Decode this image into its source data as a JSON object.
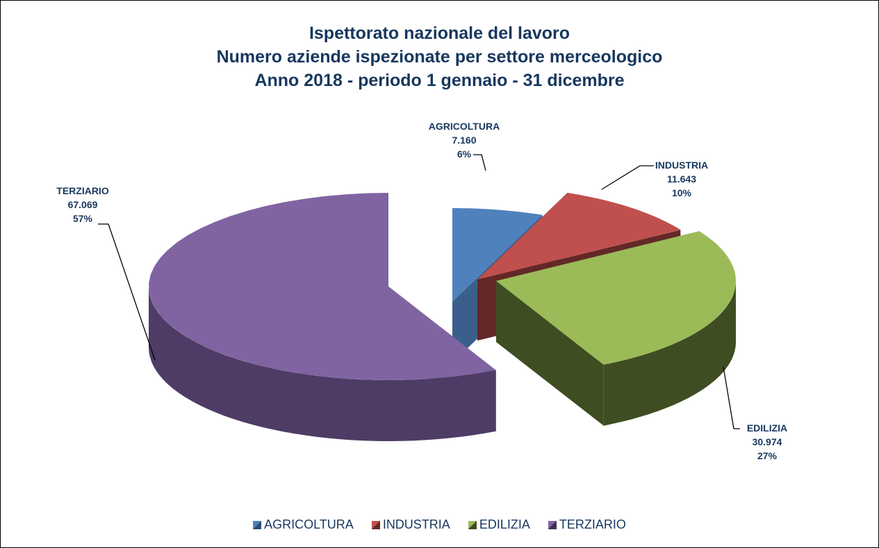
{
  "chart_data": {
    "type": "pie",
    "style": "3d-exploded",
    "title": [
      "Ispettorato nazionale del lavoro",
      "Numero aziende ispezionate per settore merceologico",
      "Anno 2018 - periodo 1 gennaio - 31 dicembre"
    ],
    "legend_position": "bottom",
    "slices": [
      {
        "label": "AGRICOLTURA",
        "value": 7160,
        "value_text": "7.160",
        "percent": "6%",
        "color": "#4F81BD",
        "dark": "#3A5F8C"
      },
      {
        "label": "INDUSTRIA",
        "value": 11643,
        "value_text": "11.643",
        "percent": "10%",
        "color": "#C0504D",
        "dark": "#632827"
      },
      {
        "label": "EDILIZIA",
        "value": 30974,
        "value_text": "30.974",
        "percent": "27%",
        "color": "#9BBB59",
        "dark": "#3F4D22"
      },
      {
        "label": "TERZIARIO",
        "value": 67069,
        "value_text": "67.069",
        "percent": "57%",
        "color": "#8064A2",
        "dark": "#4E3C66"
      }
    ]
  }
}
